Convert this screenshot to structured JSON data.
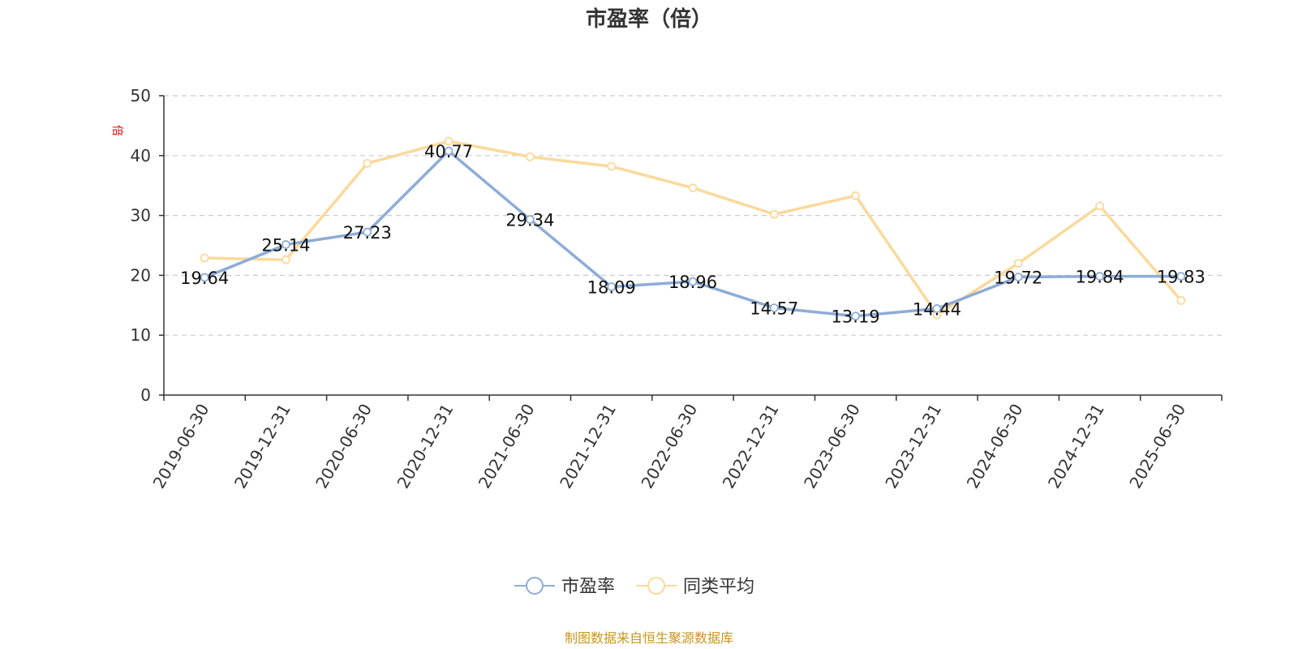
{
  "chart_data": {
    "type": "line",
    "title": "市盈率（倍）",
    "ylabel": "倍",
    "xlabel": "",
    "ylim": [
      0,
      50
    ],
    "yticks": [
      0,
      10,
      20,
      30,
      40,
      50
    ],
    "grid": true,
    "legend_position": "bottom",
    "categories": [
      "2019-06-30",
      "2019-12-31",
      "2020-06-30",
      "2020-12-31",
      "2021-06-30",
      "2021-12-31",
      "2022-06-30",
      "2022-12-31",
      "2023-06-30",
      "2023-12-31",
      "2024-06-30",
      "2024-12-31",
      "2025-06-30"
    ],
    "series": [
      {
        "name": "市盈率",
        "color": "#8eacd8",
        "show_labels": true,
        "values": [
          19.64,
          25.14,
          27.23,
          40.77,
          29.34,
          18.09,
          18.96,
          14.57,
          13.19,
          14.44,
          19.72,
          19.84,
          19.83
        ]
      },
      {
        "name": "同类平均",
        "color": "#fad99b",
        "show_labels": false,
        "values": [
          22.9,
          22.6,
          38.7,
          42.4,
          39.8,
          38.2,
          34.6,
          30.2,
          33.3,
          13.4,
          22.0,
          31.6,
          15.8
        ]
      }
    ]
  },
  "source_text": "制图数据来自恒生聚源数据库"
}
